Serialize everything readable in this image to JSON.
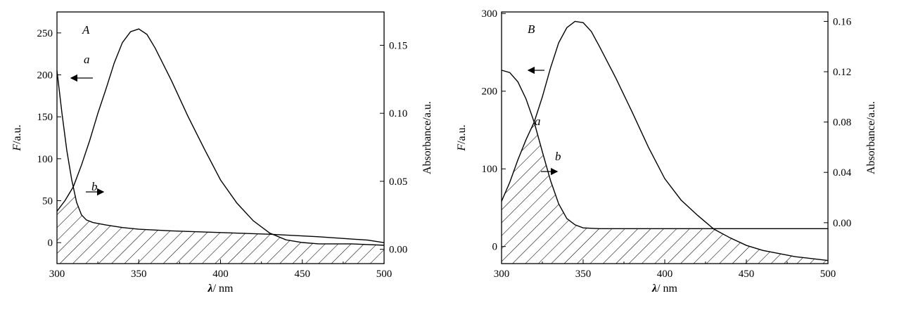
{
  "chart_data": [
    {
      "type": "line",
      "panel_label": "A",
      "xlabel_symbol": "λ",
      "xlabel_unit": "/ nm",
      "ylabel_symbol": "F",
      "ylabel_unit": "/a.u.",
      "y2label": "Absorbance/a.u.",
      "xlim": [
        300,
        500
      ],
      "ylim": [
        -25,
        275
      ],
      "y2lim": [
        -0.0105,
        0.1745
      ],
      "x_ticks": [
        300,
        350,
        400,
        450,
        500
      ],
      "y_ticks": [
        0,
        50,
        100,
        150,
        200,
        250
      ],
      "y2_ticks": [
        "0.00",
        "0.05",
        "0.10",
        "0.15"
      ],
      "y2_tick_values": [
        0,
        0.05,
        0.1,
        0.15
      ],
      "grid": false,
      "shaded_overlap": true,
      "series": [
        {
          "name": "a",
          "axis": "left",
          "direction": "left",
          "x": [
            300,
            303,
            306,
            309,
            312,
            315,
            318,
            322,
            330,
            340,
            350,
            370,
            400,
            430,
            460,
            490,
            500
          ],
          "y": [
            205,
            155,
            110,
            75,
            48,
            33,
            27,
            24,
            21,
            18,
            16,
            14,
            12,
            10,
            7,
            3,
            0
          ]
        },
        {
          "name": "b",
          "axis": "right",
          "direction": "right",
          "x": [
            300,
            305,
            310,
            315,
            320,
            325,
            330,
            335,
            340,
            345,
            350,
            355,
            360,
            370,
            380,
            390,
            400,
            410,
            420,
            430,
            440,
            450,
            460,
            480,
            500
          ],
          "y": [
            0.028,
            0.036,
            0.046,
            0.062,
            0.08,
            0.1,
            0.118,
            0.137,
            0.152,
            0.16,
            0.162,
            0.158,
            0.148,
            0.124,
            0.098,
            0.074,
            0.051,
            0.034,
            0.021,
            0.012,
            0.007,
            0.005,
            0.004,
            0.004,
            0.003
          ]
        }
      ]
    },
    {
      "type": "line",
      "panel_label": "B",
      "xlabel_symbol": "λ",
      "xlabel_unit": "/ nm",
      "ylabel_symbol": "F",
      "ylabel_unit": "/a.u.",
      "y2label": "Absorbance/a.u.",
      "xlim": [
        300,
        500
      ],
      "ylim": [
        -22,
        302
      ],
      "y2lim": [
        -0.0325,
        0.1675
      ],
      "x_ticks": [
        300,
        350,
        400,
        450,
        500
      ],
      "y_ticks": [
        0,
        100,
        200,
        300
      ],
      "y2_ticks": [
        "0.00",
        "0.04",
        "0.08",
        "0.12",
        "0.16"
      ],
      "y2_tick_values": [
        0,
        0.04,
        0.08,
        0.12,
        0.16
      ],
      "grid": false,
      "shaded_overlap": true,
      "series": [
        {
          "name": "a",
          "axis": "left",
          "direction": "left",
          "x": [
            300,
            305,
            310,
            315,
            320,
            325,
            330,
            335,
            340,
            345,
            350,
            360,
            380,
            400,
            450,
            500
          ],
          "y": [
            227,
            224,
            212,
            190,
            160,
            122,
            85,
            55,
            36,
            28,
            24,
            23,
            23,
            23,
            23,
            23
          ]
        },
        {
          "name": "b",
          "axis": "right",
          "direction": "right",
          "x": [
            300,
            305,
            310,
            315,
            320,
            325,
            330,
            335,
            340,
            345,
            350,
            355,
            360,
            370,
            380,
            390,
            400,
            410,
            420,
            430,
            440,
            450,
            460,
            480,
            500
          ],
          "y": [
            0.017,
            0.032,
            0.05,
            0.066,
            0.08,
            0.1,
            0.123,
            0.143,
            0.155,
            0.16,
            0.159,
            0.152,
            0.14,
            0.115,
            0.088,
            0.06,
            0.035,
            0.018,
            0.006,
            -0.005,
            -0.012,
            -0.018,
            -0.022,
            -0.027,
            -0.03
          ]
        }
      ]
    }
  ]
}
